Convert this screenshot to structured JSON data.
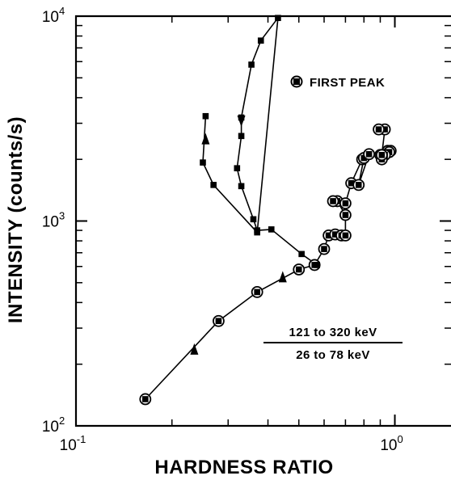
{
  "chart_data": {
    "type": "scatter",
    "title": "",
    "xlabel": "HARDNESS RATIO",
    "ylabel": "INTENSITY (counts/s)",
    "xscale": "log",
    "yscale": "log",
    "xlim": [
      0.1,
      1.5
    ],
    "ylim": [
      100,
      10000
    ],
    "x_ticks": [
      {
        "base": "10",
        "exp": "-1",
        "value": 0.1
      },
      {
        "base": "10",
        "exp": "0",
        "value": 1.0
      }
    ],
    "y_ticks": [
      {
        "base": "10",
        "exp": "2",
        "value": 100
      },
      {
        "base": "10",
        "exp": "3",
        "value": 1000
      },
      {
        "base": "10",
        "exp": "4",
        "value": 10000
      }
    ],
    "grid": false,
    "annotation": {
      "numerator": "121 to 320 keV",
      "denominator": "26 to 78 keV"
    },
    "legend": {
      "position": "top-right",
      "entries": [
        {
          "label": "FIRST PEAK",
          "marker": "circle-with-square"
        }
      ]
    },
    "series": [
      {
        "name": "FIRST PEAK",
        "marker": "circle-with-square",
        "x": [
          0.165,
          0.28,
          0.37,
          0.5,
          0.56,
          0.6,
          0.62,
          0.65,
          0.68,
          0.7,
          0.7,
          0.66,
          0.64,
          0.7,
          0.73,
          0.79,
          0.8,
          0.77,
          0.83,
          0.9,
          0.95,
          0.97,
          0.96,
          0.93,
          0.91,
          0.91,
          0.93,
          0.89
        ],
        "y": [
          135,
          325,
          450,
          580,
          610,
          730,
          850,
          860,
          850,
          850,
          1070,
          1250,
          1250,
          1220,
          1530,
          2000,
          2030,
          1500,
          2120,
          2100,
          2200,
          2200,
          2170,
          2100,
          2000,
          2100,
          2800,
          2800
        ]
      },
      {
        "name": "",
        "marker": "filled-square",
        "x": [
          0.57,
          0.51,
          0.41,
          0.37,
          0.36,
          0.33,
          0.32,
          0.33,
          0.33,
          0.355,
          0.38,
          0.43,
          0.37,
          0.27,
          0.25,
          0.255
        ],
        "y": [
          610,
          690,
          910,
          900,
          1020,
          1480,
          1810,
          2600,
          3200,
          5800,
          7600,
          9800,
          880,
          1500,
          1930,
          3250
        ]
      }
    ],
    "arrows": [
      {
        "x": 0.235,
        "y": 235,
        "direction": "up"
      },
      {
        "x": 0.445,
        "y": 530,
        "direction": "up"
      },
      {
        "x": 0.33,
        "y": 3100,
        "direction": "down"
      },
      {
        "x": 0.255,
        "y": 2500,
        "direction": "up"
      }
    ]
  }
}
